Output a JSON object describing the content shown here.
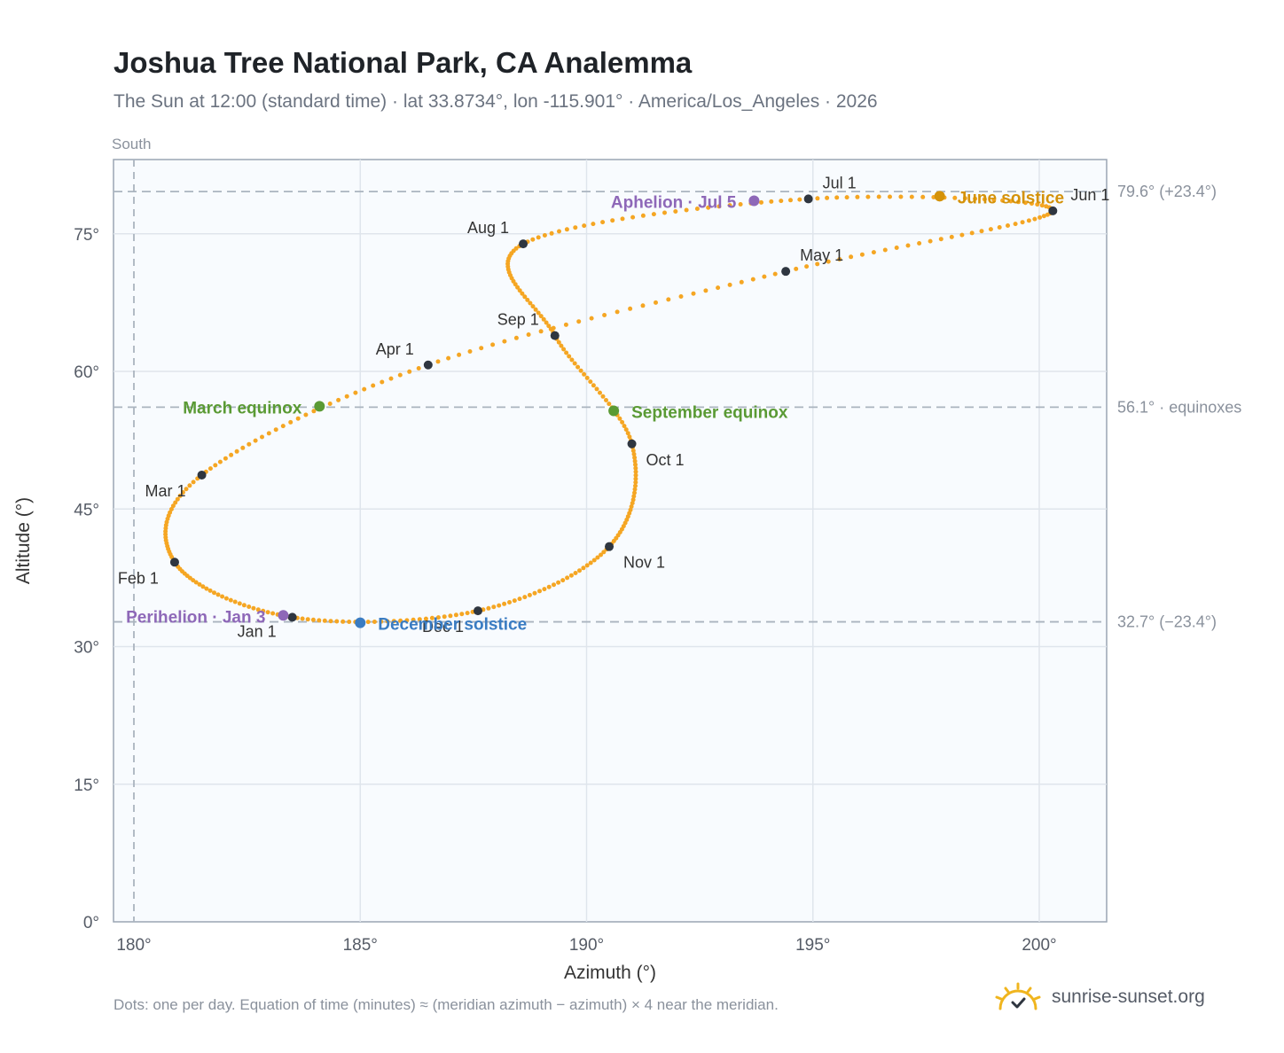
{
  "title": "Joshua Tree National Park, CA Analemma",
  "subtitle": "The Sun at 12:00 (standard time) · lat 33.8734°, lon -115.901° · America/Los_Angeles · 2026",
  "footnote": "Dots: one per day. Equation of time (minutes) ≈ (meridian azimuth − azimuth) × 4 near the meridian.",
  "brand": {
    "name": "sunrise-sunset.org",
    "icon": "sun-check-icon"
  },
  "colors": {
    "path": "#f5a623",
    "month_marker": "#2f3640",
    "equinox": "#5a9a34",
    "june_solstice": "#d4920a",
    "december_solstice": "#3a7cc2",
    "apsis": "#8e68b8",
    "reference_line": "#aab4bf",
    "plot_bg": "#f8fbfe",
    "grid": "#dfe5ec"
  },
  "chart_data": {
    "type": "scatter",
    "xlabel": "Azimuth (°)",
    "ylabel": "Altitude (°)",
    "xlim": [
      179.6,
      201.5
    ],
    "ylim": [
      0,
      83.5
    ],
    "xticks": [
      180,
      185,
      190,
      195,
      200
    ],
    "yticks": [
      0,
      15,
      30,
      45,
      60,
      75
    ],
    "x_tick_labels": [
      "180°",
      "185°",
      "190°",
      "195°",
      "200°"
    ],
    "y_tick_labels": [
      "0°",
      "15°",
      "30°",
      "45°",
      "60°",
      "75°"
    ],
    "grid": true,
    "meridian": {
      "azimuth": 180,
      "label": "South"
    },
    "reference_lines": [
      {
        "altitude": 79.6,
        "label": "79.6° (+23.4°)"
      },
      {
        "altitude": 56.1,
        "label": "56.1° · equinoxes"
      },
      {
        "altitude": 32.7,
        "label": "32.7° (−23.4°)"
      }
    ],
    "month_markers": [
      {
        "label": "Jan 1",
        "azimuth": 183.5,
        "altitude": 33.2
      },
      {
        "label": "Feb 1",
        "azimuth": 180.9,
        "altitude": 39.2
      },
      {
        "label": "Mar 1",
        "azimuth": 181.5,
        "altitude": 48.7
      },
      {
        "label": "Apr 1",
        "azimuth": 186.5,
        "altitude": 60.7
      },
      {
        "label": "May 1",
        "azimuth": 194.4,
        "altitude": 70.9
      },
      {
        "label": "Jun 1",
        "azimuth": 200.3,
        "altitude": 77.5
      },
      {
        "label": "Jul 1",
        "azimuth": 194.9,
        "altitude": 78.8
      },
      {
        "label": "Aug 1",
        "azimuth": 188.6,
        "altitude": 73.9
      },
      {
        "label": "Sep 1",
        "azimuth": 189.3,
        "altitude": 63.9
      },
      {
        "label": "Oct 1",
        "azimuth": 191.0,
        "altitude": 52.1
      },
      {
        "label": "Nov 1",
        "azimuth": 190.5,
        "altitude": 40.9
      },
      {
        "label": "Dec 1",
        "azimuth": 187.6,
        "altitude": 33.9
      }
    ],
    "events": [
      {
        "label": "March equinox",
        "azimuth": 184.1,
        "altitude": 56.2,
        "kind": "equinox"
      },
      {
        "label": "June solstice",
        "azimuth": 197.8,
        "altitude": 79.1,
        "kind": "june_solstice"
      },
      {
        "label": "September equinox",
        "azimuth": 190.6,
        "altitude": 55.7,
        "kind": "equinox"
      },
      {
        "label": "December solstice",
        "azimuth": 185.0,
        "altitude": 32.6,
        "kind": "december_solstice"
      },
      {
        "label": "Perihelion · Jan 3",
        "azimuth": 183.3,
        "altitude": 33.4,
        "kind": "apsis"
      },
      {
        "label": "Aphelion · Jul 5",
        "azimuth": 193.7,
        "altitude": 78.6,
        "kind": "apsis"
      }
    ],
    "series": [
      {
        "daily_points": 365
      }
    ]
  }
}
